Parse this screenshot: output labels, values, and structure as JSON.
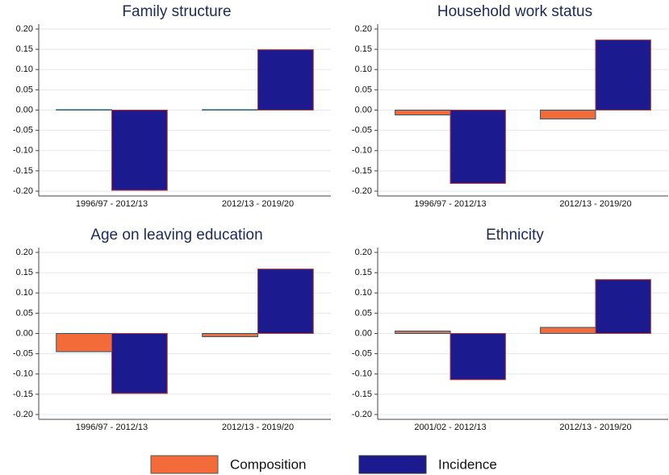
{
  "chart_data": [
    {
      "type": "bar",
      "title": "Family structure",
      "categories": [
        "1996/97 - 2012/13",
        "2012/13 - 2019/20"
      ],
      "series": [
        {
          "name": "Composition",
          "color": "#f26b38",
          "values": [
            0.001,
            0.001
          ]
        },
        {
          "name": "Incidence",
          "color": "#1b1b8f",
          "values": [
            -0.198,
            0.149
          ]
        }
      ],
      "ylim": [
        -0.2,
        0.2
      ],
      "yticks": [
        {
          "value": 0.2,
          "label": "0.20"
        },
        0.15,
        {
          "value": 0.1,
          "label": "0.10"
        },
        0.05,
        {
          "value": 0,
          "label": "0.00"
        },
        -0.05,
        {
          "value": -0.1,
          "label": "-0.10"
        },
        -0.15,
        {
          "value": -0.2,
          "label": "-0.20"
        }
      ],
      "grid": true
    },
    {
      "type": "bar",
      "title": "Household work status",
      "categories": [
        "1996/97 - 2012/13",
        "2012/13 - 2019/20"
      ],
      "series": [
        {
          "name": "Composition",
          "color": "#f26b38",
          "values": [
            -0.012,
            -0.022
          ]
        },
        {
          "name": "Incidence",
          "color": "#1b1b8f",
          "values": [
            -0.181,
            0.173
          ]
        }
      ],
      "ylim": [
        -0.2,
        0.2
      ],
      "yticks": [
        {
          "value": 0.2,
          "label": "0.20"
        },
        0.15,
        {
          "value": 0.1,
          "label": "0.10"
        },
        0.05,
        {
          "value": 0,
          "label": "0.00"
        },
        -0.05,
        {
          "value": -0.1,
          "label": "-0.10"
        },
        -0.15,
        {
          "value": -0.2,
          "label": "-0.20"
        }
      ],
      "grid": true
    },
    {
      "type": "bar",
      "title": "Age on leaving education",
      "categories": [
        "1996/97 - 2012/13",
        "2012/13 - 2019/20"
      ],
      "series": [
        {
          "name": "Composition",
          "color": "#f26b38",
          "values": [
            -0.045,
            -0.008
          ]
        },
        {
          "name": "Incidence",
          "color": "#1b1b8f",
          "values": [
            -0.148,
            0.159
          ]
        }
      ],
      "ylim": [
        -0.2,
        0.2
      ],
      "yticks": [
        {
          "value": 0.2,
          "label": "0.20"
        },
        0.15,
        {
          "value": 0.1,
          "label": "0.10"
        },
        0.05,
        {
          "value": 0,
          "label": "0.00"
        },
        -0.05,
        {
          "value": -0.1,
          "label": "-0.10"
        },
        -0.15,
        {
          "value": -0.2,
          "label": "-0.20"
        }
      ],
      "grid": true
    },
    {
      "type": "bar",
      "title": "Ethnicity",
      "categories": [
        "2001/02 - 2012/13",
        "2012/13 - 2019/20"
      ],
      "series": [
        {
          "name": "Composition",
          "color": "#f26b38",
          "values": [
            0.006,
            0.015
          ]
        },
        {
          "name": "Incidence",
          "color": "#1b1b8f",
          "values": [
            -0.114,
            0.133
          ]
        }
      ],
      "ylim": [
        -0.2,
        0.2
      ],
      "yticks": [
        {
          "value": 0.2,
          "label": "0.20"
        },
        0.15,
        {
          "value": 0.1,
          "label": "0.10"
        },
        0.05,
        {
          "value": 0,
          "label": "0.00"
        },
        -0.05,
        {
          "value": -0.1,
          "label": "-0.10"
        },
        -0.15,
        {
          "value": -0.2,
          "label": "-0.20"
        }
      ],
      "grid": true
    }
  ]
}
